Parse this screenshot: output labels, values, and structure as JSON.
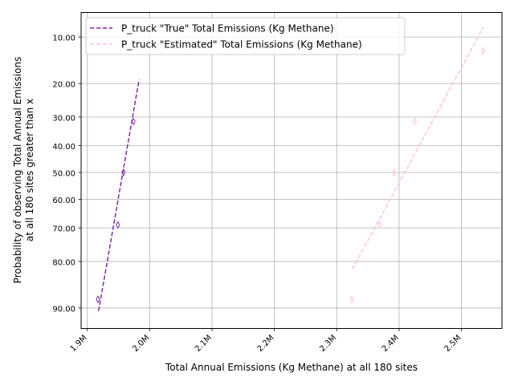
{
  "chart_data": {
    "type": "scatter",
    "xlabel": "Total Annual Emissions (Kg Methane) at all 180 sites",
    "ylabel": [
      "Probability of observing Total Annual Emissions",
      "at all 180 sites greater than x"
    ],
    "x_ticks": [
      {
        "value": 1900000,
        "label": "1.9M"
      },
      {
        "value": 2000000,
        "label": "2.0M"
      },
      {
        "value": 2100000,
        "label": "2.1M"
      },
      {
        "value": 2200000,
        "label": "2.2M"
      },
      {
        "value": 2300000,
        "label": "2.3M"
      },
      {
        "value": 2400000,
        "label": "2.4M"
      },
      {
        "value": 2500000,
        "label": "2.5M"
      }
    ],
    "y_ticks": [
      {
        "value": 10,
        "label": "10.00"
      },
      {
        "value": 20,
        "label": "20.00"
      },
      {
        "value": 30,
        "label": "30.00"
      },
      {
        "value": 40,
        "label": "40.00"
      },
      {
        "value": 50,
        "label": "50.00"
      },
      {
        "value": 60,
        "label": "60.00"
      },
      {
        "value": 70,
        "label": "70.00"
      },
      {
        "value": 80,
        "label": "80.00"
      },
      {
        "value": 90,
        "label": "90.00"
      }
    ],
    "y_scale": "normal probability (inverted, top = 10, bottom = 90)",
    "xlim": [
      1890000,
      2565000
    ],
    "ylim": [
      93,
      6.5
    ],
    "grid": true,
    "legend_position": "top",
    "series": [
      {
        "name": "P_truck \"True\" Total Emissions (Kg Methane)",
        "color": "#7b2fa3",
        "line_style": "dashed",
        "marker": "thin_diamond",
        "points": [
          {
            "x": 1917000,
            "y": 88.5
          },
          {
            "x": 1949000,
            "y": 69
          },
          {
            "x": 1958000,
            "y": 50
          },
          {
            "x": 1974000,
            "y": 31.5
          }
        ],
        "fit_line": [
          {
            "x": 1918000,
            "y": 90.5
          },
          {
            "x": 1983000,
            "y": 19
          }
        ]
      },
      {
        "name": "P_truck \"Estimated\" Total Emissions (Kg Methane)",
        "color": "#ffc0ea",
        "line_style": "dashed",
        "marker": "thin_diamond",
        "points": [
          {
            "x": 2324000,
            "y": 88.5
          },
          {
            "x": 2369000,
            "y": 69
          },
          {
            "x": 2392000,
            "y": 50
          },
          {
            "x": 2425000,
            "y": 31.5
          },
          {
            "x": 2535000,
            "y": 12.5
          }
        ],
        "fit_line": [
          {
            "x": 2325000,
            "y": 82
          },
          {
            "x": 2535000,
            "y": 8.5
          }
        ]
      }
    ]
  }
}
